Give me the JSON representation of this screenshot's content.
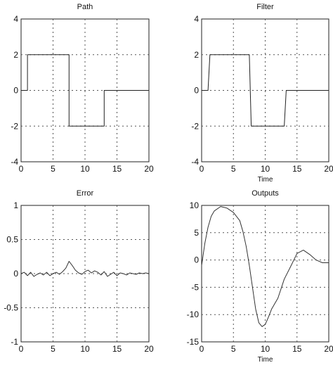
{
  "chart_data": [
    {
      "type": "line",
      "title": "Path",
      "xlabel": "",
      "ylabel": "",
      "xlim": [
        0,
        20
      ],
      "ylim": [
        -4,
        4
      ],
      "xticks": [
        0,
        5,
        10,
        15,
        20
      ],
      "yticks": [
        4,
        2,
        0,
        -2,
        -4
      ],
      "xtick_labels": [
        "0",
        "5",
        "10",
        "15",
        "20"
      ],
      "ytick_labels": [
        "4",
        "2",
        "0",
        "-2",
        "-4"
      ],
      "grid": true,
      "series": [
        {
          "color": "#222222",
          "x": [
            0,
            1,
            1,
            7.5,
            7.5,
            13,
            13,
            20
          ],
          "y": [
            0,
            0,
            2,
            2,
            -2,
            -2,
            0,
            0
          ]
        }
      ]
    },
    {
      "type": "line",
      "title": "Filter",
      "xlabel": "Time",
      "ylabel": "",
      "xlim": [
        0,
        20
      ],
      "ylim": [
        -4,
        4
      ],
      "xticks": [
        0,
        5,
        10,
        15,
        20
      ],
      "yticks": [
        4,
        2,
        0,
        -2,
        -4
      ],
      "xtick_labels": [
        "0",
        "5",
        "10",
        "15",
        "20"
      ],
      "ytick_labels": [
        "4",
        "2",
        "0",
        "-2",
        "-4"
      ],
      "grid": true,
      "series": [
        {
          "color": "#222222",
          "x": [
            0,
            1,
            1.3,
            7.5,
            7.8,
            13,
            13.3,
            20
          ],
          "y": [
            0,
            0,
            2,
            2,
            -2,
            -2,
            0,
            0
          ]
        }
      ]
    },
    {
      "type": "line",
      "title": "Error",
      "xlabel": "",
      "ylabel": "",
      "xlim": [
        0,
        20
      ],
      "ylim": [
        -1,
        1
      ],
      "xticks": [
        0,
        5,
        10,
        15,
        20
      ],
      "yticks": [
        1,
        0.5,
        0,
        -0.5,
        -1
      ],
      "xtick_labels": [
        "0",
        "5",
        "10",
        "15",
        "20"
      ],
      "ytick_labels": [
        "1",
        "0.5",
        "0",
        "-0.5",
        "-1"
      ],
      "grid": true,
      "series": [
        {
          "color": "#333333",
          "x": [
            0,
            0.5,
            1,
            1.5,
            2,
            2.5,
            3,
            3.5,
            4,
            4.5,
            5,
            5.5,
            6,
            6.5,
            7,
            7.5,
            8,
            8.5,
            9,
            9.5,
            10,
            10.5,
            11,
            11.5,
            12,
            12.5,
            13,
            13.5,
            14,
            14.5,
            15,
            15.5,
            16,
            16.5,
            17,
            17.5,
            18,
            18.5,
            19,
            19.5,
            20
          ],
          "y": [
            0.0,
            0.02,
            -0.03,
            0.02,
            -0.04,
            -0.01,
            0.01,
            -0.02,
            0.02,
            -0.03,
            0.0,
            0.02,
            -0.01,
            0.03,
            0.08,
            0.18,
            0.12,
            0.05,
            0.01,
            -0.01,
            0.03,
            0.05,
            0.01,
            0.04,
            0.02,
            -0.02,
            0.03,
            -0.04,
            -0.01,
            0.02,
            -0.03,
            0.01,
            0.0,
            -0.02,
            0.01,
            0.0,
            -0.01,
            0.01,
            0.0,
            0.01,
            0.0
          ]
        }
      ]
    },
    {
      "type": "line",
      "title": "Outputs",
      "xlabel": "Time",
      "ylabel": "",
      "xlim": [
        0,
        20
      ],
      "ylim": [
        -15,
        10
      ],
      "xticks": [
        0,
        5,
        10,
        15,
        20
      ],
      "yticks": [
        10,
        5,
        0,
        -5,
        -10,
        -15
      ],
      "xtick_labels": [
        "0",
        "5",
        "10",
        "15",
        "20"
      ],
      "ytick_labels": [
        "10",
        "5",
        "0",
        "-5",
        "-10",
        "-15"
      ],
      "grid": true,
      "series": [
        {
          "color": "#333333",
          "x": [
            0,
            0.5,
            1,
            1.5,
            2,
            3,
            4,
            5,
            6,
            6.5,
            7,
            7.5,
            8,
            8.5,
            9,
            9.5,
            10,
            10.5,
            11,
            12,
            13,
            14,
            15,
            16,
            17,
            18,
            19,
            20
          ],
          "y": [
            -1,
            3,
            6,
            8,
            9,
            9.8,
            9.5,
            8.7,
            7.2,
            5.2,
            2.5,
            -1,
            -5,
            -9,
            -11.5,
            -12.2,
            -11.8,
            -10.5,
            -9,
            -7,
            -3.5,
            -1.2,
            1.2,
            1.8,
            1,
            0,
            -0.5,
            -0.5
          ]
        }
      ]
    }
  ]
}
